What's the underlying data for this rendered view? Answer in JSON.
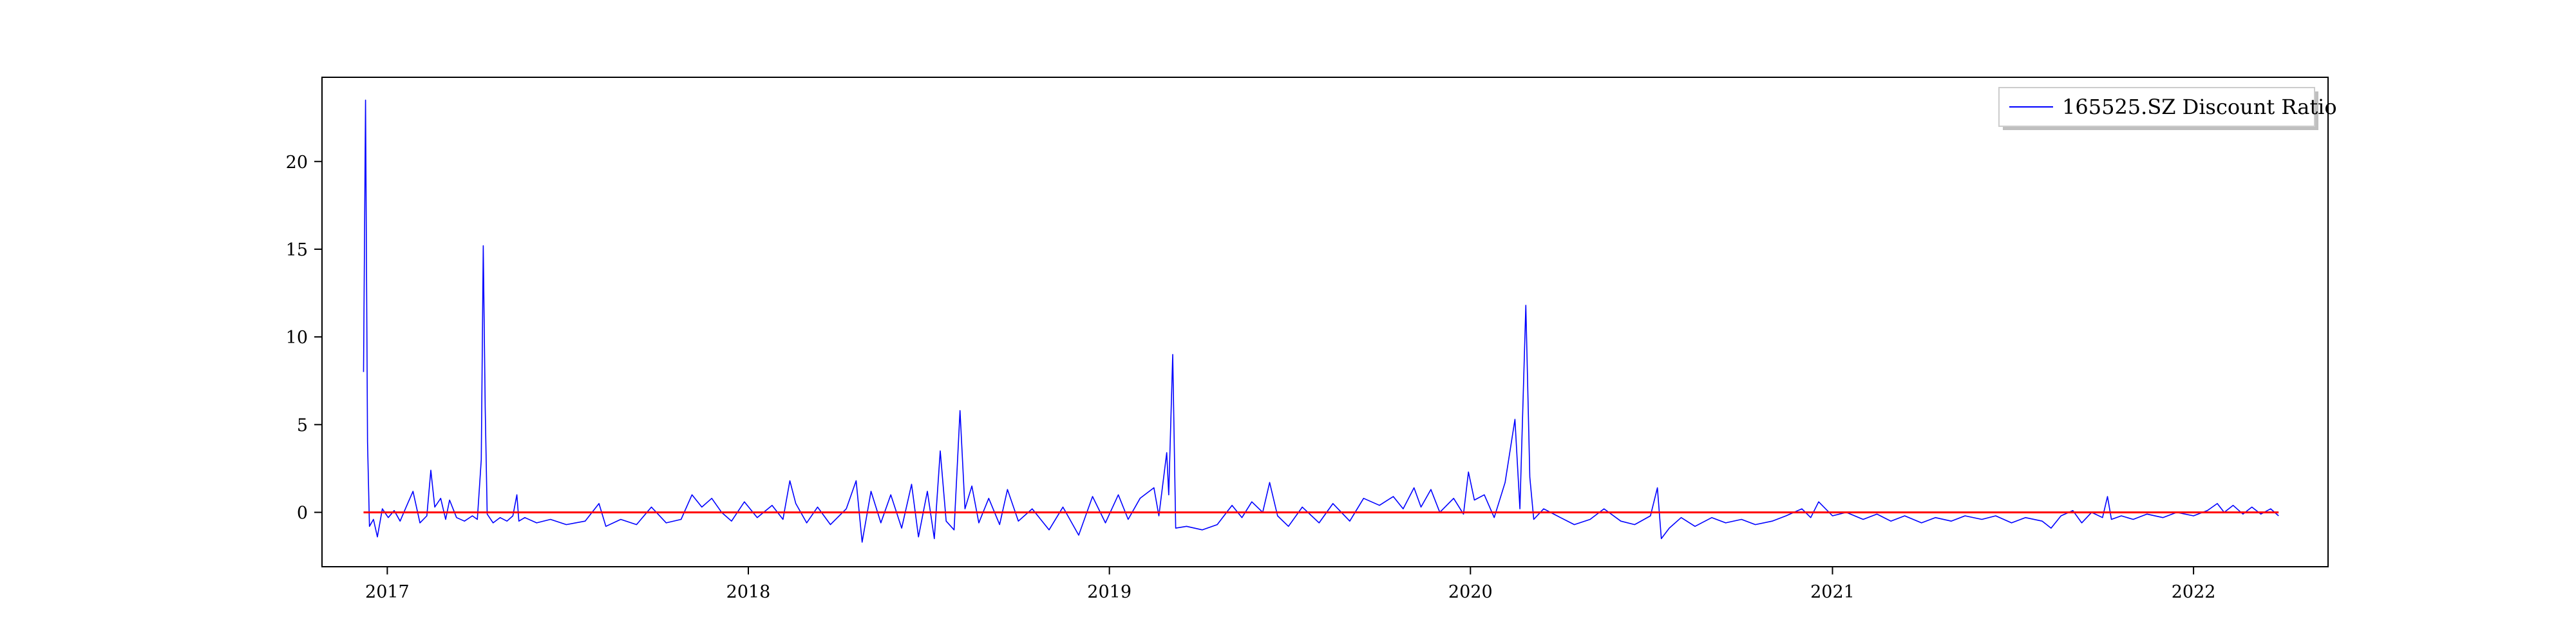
{
  "chart_data": {
    "type": "line",
    "title": "",
    "xlabel": "",
    "ylabel": "",
    "x_axis": {
      "range": [
        "2016-10-27",
        "2022-05-17"
      ],
      "ticks": [
        "2017-01-01",
        "2018-01-01",
        "2019-01-01",
        "2020-01-01",
        "2021-01-01",
        "2022-01-01"
      ],
      "tick_labels": [
        "2017",
        "2018",
        "2019",
        "2020",
        "2021",
        "2022"
      ]
    },
    "y_axis": {
      "range": [
        -3.1,
        24.8
      ],
      "ticks": [
        0,
        5,
        10,
        15,
        20
      ],
      "tick_labels": [
        "0",
        "5",
        "10",
        "15",
        "20"
      ]
    },
    "grid": false,
    "legend": {
      "position": "top-right",
      "entries": [
        "165525.SZ Discount Ratio"
      ]
    },
    "series": [
      {
        "name": "165525.SZ Discount Ratio",
        "color": "#0000ff",
        "points": [
          [
            "2016-12-08",
            8.0
          ],
          [
            "2016-12-10",
            23.5
          ],
          [
            "2016-12-12",
            4.0
          ],
          [
            "2016-12-14",
            -0.8
          ],
          [
            "2016-12-18",
            -0.4
          ],
          [
            "2016-12-22",
            -1.4
          ],
          [
            "2016-12-27",
            0.2
          ],
          [
            "2017-01-02",
            -0.3
          ],
          [
            "2017-01-08",
            0.1
          ],
          [
            "2017-01-14",
            -0.5
          ],
          [
            "2017-01-20",
            0.3
          ],
          [
            "2017-01-27",
            1.2
          ],
          [
            "2017-02-03",
            -0.6
          ],
          [
            "2017-02-10",
            -0.2
          ],
          [
            "2017-02-14",
            2.4
          ],
          [
            "2017-02-18",
            0.3
          ],
          [
            "2017-02-24",
            0.8
          ],
          [
            "2017-03-01",
            -0.4
          ],
          [
            "2017-03-05",
            0.7
          ],
          [
            "2017-03-12",
            -0.3
          ],
          [
            "2017-03-20",
            -0.5
          ],
          [
            "2017-03-28",
            -0.2
          ],
          [
            "2017-04-02",
            -0.4
          ],
          [
            "2017-04-06",
            3.0
          ],
          [
            "2017-04-08",
            15.2
          ],
          [
            "2017-04-10",
            6.0
          ],
          [
            "2017-04-12",
            -0.1
          ],
          [
            "2017-04-18",
            -0.6
          ],
          [
            "2017-04-25",
            -0.3
          ],
          [
            "2017-05-02",
            -0.5
          ],
          [
            "2017-05-08",
            -0.2
          ],
          [
            "2017-05-12",
            1.0
          ],
          [
            "2017-05-14",
            -0.5
          ],
          [
            "2017-05-20",
            -0.3
          ],
          [
            "2017-06-01",
            -0.6
          ],
          [
            "2017-06-15",
            -0.4
          ],
          [
            "2017-07-01",
            -0.7
          ],
          [
            "2017-07-20",
            -0.5
          ],
          [
            "2017-08-03",
            0.5
          ],
          [
            "2017-08-10",
            -0.8
          ],
          [
            "2017-08-25",
            -0.4
          ],
          [
            "2017-09-10",
            -0.7
          ],
          [
            "2017-09-25",
            0.3
          ],
          [
            "2017-10-10",
            -0.6
          ],
          [
            "2017-10-25",
            -0.4
          ],
          [
            "2017-11-05",
            1.0
          ],
          [
            "2017-11-15",
            0.3
          ],
          [
            "2017-11-25",
            0.8
          ],
          [
            "2017-12-05",
            0.0
          ],
          [
            "2017-12-15",
            -0.5
          ],
          [
            "2017-12-28",
            0.6
          ],
          [
            "2018-01-10",
            -0.3
          ],
          [
            "2018-01-25",
            0.4
          ],
          [
            "2018-02-05",
            -0.4
          ],
          [
            "2018-02-12",
            1.8
          ],
          [
            "2018-02-18",
            0.5
          ],
          [
            "2018-03-01",
            -0.6
          ],
          [
            "2018-03-12",
            0.3
          ],
          [
            "2018-03-25",
            -0.7
          ],
          [
            "2018-04-10",
            0.2
          ],
          [
            "2018-04-20",
            1.8
          ],
          [
            "2018-04-26",
            -1.7
          ],
          [
            "2018-05-05",
            1.2
          ],
          [
            "2018-05-15",
            -0.6
          ],
          [
            "2018-05-25",
            1.0
          ],
          [
            "2018-06-05",
            -0.9
          ],
          [
            "2018-06-15",
            1.6
          ],
          [
            "2018-06-22",
            -1.4
          ],
          [
            "2018-07-01",
            1.2
          ],
          [
            "2018-07-08",
            -1.5
          ],
          [
            "2018-07-14",
            3.5
          ],
          [
            "2018-07-20",
            -0.5
          ],
          [
            "2018-07-28",
            -1.0
          ],
          [
            "2018-08-03",
            5.8
          ],
          [
            "2018-08-08",
            0.2
          ],
          [
            "2018-08-15",
            1.5
          ],
          [
            "2018-08-22",
            -0.6
          ],
          [
            "2018-09-01",
            0.8
          ],
          [
            "2018-09-12",
            -0.7
          ],
          [
            "2018-09-20",
            1.3
          ],
          [
            "2018-10-01",
            -0.5
          ],
          [
            "2018-10-15",
            0.2
          ],
          [
            "2018-11-01",
            -1.0
          ],
          [
            "2018-11-15",
            0.3
          ],
          [
            "2018-12-01",
            -1.3
          ],
          [
            "2018-12-15",
            0.9
          ],
          [
            "2018-12-28",
            -0.6
          ],
          [
            "2019-01-10",
            1.0
          ],
          [
            "2019-01-20",
            -0.4
          ],
          [
            "2019-02-01",
            0.8
          ],
          [
            "2019-02-15",
            1.4
          ],
          [
            "2019-02-20",
            -0.2
          ],
          [
            "2019-02-28",
            3.4
          ],
          [
            "2019-03-02",
            1.0
          ],
          [
            "2019-03-06",
            9.0
          ],
          [
            "2019-03-09",
            -0.9
          ],
          [
            "2019-03-20",
            -0.8
          ],
          [
            "2019-04-05",
            -1.0
          ],
          [
            "2019-04-20",
            -0.7
          ],
          [
            "2019-05-05",
            0.4
          ],
          [
            "2019-05-15",
            -0.3
          ],
          [
            "2019-05-25",
            0.6
          ],
          [
            "2019-06-05",
            0.0
          ],
          [
            "2019-06-12",
            1.7
          ],
          [
            "2019-06-20",
            -0.2
          ],
          [
            "2019-07-01",
            -0.8
          ],
          [
            "2019-07-15",
            0.3
          ],
          [
            "2019-08-01",
            -0.6
          ],
          [
            "2019-08-15",
            0.5
          ],
          [
            "2019-09-01",
            -0.5
          ],
          [
            "2019-09-15",
            0.8
          ],
          [
            "2019-10-01",
            0.4
          ],
          [
            "2019-10-15",
            0.9
          ],
          [
            "2019-10-25",
            0.2
          ],
          [
            "2019-11-05",
            1.4
          ],
          [
            "2019-11-12",
            0.3
          ],
          [
            "2019-11-22",
            1.3
          ],
          [
            "2019-12-01",
            0.0
          ],
          [
            "2019-12-15",
            0.8
          ],
          [
            "2019-12-25",
            -0.1
          ],
          [
            "2019-12-30",
            2.3
          ],
          [
            "2020-01-05",
            0.7
          ],
          [
            "2020-01-15",
            1.0
          ],
          [
            "2020-01-25",
            -0.3
          ],
          [
            "2020-02-05",
            1.7
          ],
          [
            "2020-02-15",
            5.3
          ],
          [
            "2020-02-20",
            0.2
          ],
          [
            "2020-02-26",
            11.8
          ],
          [
            "2020-03-01",
            2.0
          ],
          [
            "2020-03-05",
            -0.4
          ],
          [
            "2020-03-15",
            0.2
          ],
          [
            "2020-04-01",
            -0.3
          ],
          [
            "2020-04-15",
            -0.7
          ],
          [
            "2020-05-01",
            -0.4
          ],
          [
            "2020-05-15",
            0.2
          ],
          [
            "2020-06-01",
            -0.5
          ],
          [
            "2020-06-15",
            -0.7
          ],
          [
            "2020-07-01",
            -0.2
          ],
          [
            "2020-07-08",
            1.4
          ],
          [
            "2020-07-12",
            -1.5
          ],
          [
            "2020-07-20",
            -0.9
          ],
          [
            "2020-08-01",
            -0.3
          ],
          [
            "2020-08-15",
            -0.8
          ],
          [
            "2020-09-01",
            -0.3
          ],
          [
            "2020-09-15",
            -0.6
          ],
          [
            "2020-10-01",
            -0.4
          ],
          [
            "2020-10-15",
            -0.7
          ],
          [
            "2020-11-01",
            -0.5
          ],
          [
            "2020-11-15",
            -0.2
          ],
          [
            "2020-12-01",
            0.2
          ],
          [
            "2020-12-10",
            -0.3
          ],
          [
            "2020-12-18",
            0.6
          ],
          [
            "2021-01-01",
            -0.2
          ],
          [
            "2021-01-15",
            0.0
          ],
          [
            "2021-02-01",
            -0.4
          ],
          [
            "2021-02-15",
            -0.1
          ],
          [
            "2021-03-01",
            -0.5
          ],
          [
            "2021-03-15",
            -0.2
          ],
          [
            "2021-04-01",
            -0.6
          ],
          [
            "2021-04-15",
            -0.3
          ],
          [
            "2021-05-01",
            -0.5
          ],
          [
            "2021-05-15",
            -0.2
          ],
          [
            "2021-06-01",
            -0.4
          ],
          [
            "2021-06-15",
            -0.2
          ],
          [
            "2021-07-01",
            -0.6
          ],
          [
            "2021-07-15",
            -0.3
          ],
          [
            "2021-08-01",
            -0.5
          ],
          [
            "2021-08-10",
            -0.9
          ],
          [
            "2021-08-20",
            -0.2
          ],
          [
            "2021-09-01",
            0.1
          ],
          [
            "2021-09-10",
            -0.6
          ],
          [
            "2021-09-20",
            0.0
          ],
          [
            "2021-10-01",
            -0.3
          ],
          [
            "2021-10-06",
            0.9
          ],
          [
            "2021-10-10",
            -0.4
          ],
          [
            "2021-10-20",
            -0.2
          ],
          [
            "2021-11-01",
            -0.4
          ],
          [
            "2021-11-15",
            -0.1
          ],
          [
            "2021-12-01",
            -0.3
          ],
          [
            "2021-12-15",
            0.0
          ],
          [
            "2022-01-01",
            -0.2
          ],
          [
            "2022-01-15",
            0.1
          ],
          [
            "2022-01-25",
            0.5
          ],
          [
            "2022-02-01",
            0.0
          ],
          [
            "2022-02-10",
            0.4
          ],
          [
            "2022-02-20",
            -0.1
          ],
          [
            "2022-03-01",
            0.3
          ],
          [
            "2022-03-10",
            -0.1
          ],
          [
            "2022-03-20",
            0.2
          ],
          [
            "2022-03-28",
            -0.2
          ]
        ]
      },
      {
        "name": "",
        "color": "#ff0000",
        "points": [
          [
            "2016-12-08",
            0.0
          ],
          [
            "2022-03-28",
            0.0
          ]
        ]
      }
    ]
  }
}
